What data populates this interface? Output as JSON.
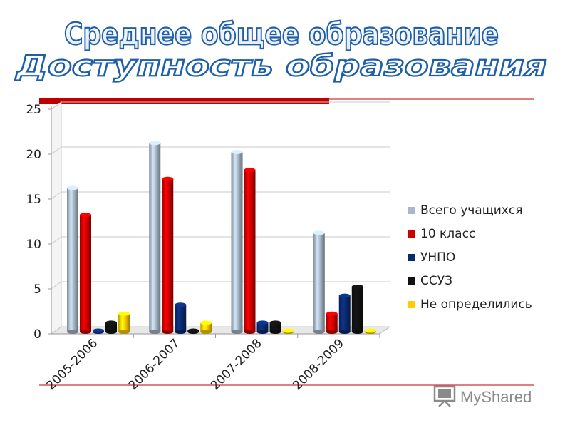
{
  "slide": {
    "title": "Среднее общее образование",
    "subtitle": "Доступность образования",
    "watermark": "MyShared"
  },
  "colors": {
    "title_outline": "#1f5fa8",
    "red_bar": "#c00000",
    "rule_line": "#c00000",
    "gray_series": "#a8b8c8",
    "red_series": "#cc0000",
    "navy_series": "#0a2a6e",
    "black_series": "#111111",
    "yellow_series": "#ffcc00",
    "watermark": "#8a8a8a"
  },
  "chart_data": {
    "type": "bar",
    "title": "",
    "xlabel": "",
    "ylabel": "",
    "categories": [
      "2005-2006",
      "2006-2007",
      "2007-2008",
      "2008-2009"
    ],
    "ylim": [
      0,
      25
    ],
    "yticks": [
      0,
      5,
      10,
      15,
      20,
      25
    ],
    "grid": true,
    "legend_position": "right",
    "series": [
      {
        "name": "Всего учащихся",
        "values": [
          16,
          21,
          20,
          11
        ],
        "color": "#a8b8c8"
      },
      {
        "name": "10 класс",
        "values": [
          13,
          17,
          18,
          2
        ],
        "color": "#cc0000"
      },
      {
        "name": "УНПО",
        "values": [
          0,
          3,
          1,
          4
        ],
        "color": "#0a2a6e"
      },
      {
        "name": "ССУЗ",
        "values": [
          1,
          0,
          1,
          5
        ],
        "color": "#111111"
      },
      {
        "name": "Не определились",
        "values": [
          2,
          1,
          0,
          0
        ],
        "color": "#ffcc00"
      }
    ]
  }
}
